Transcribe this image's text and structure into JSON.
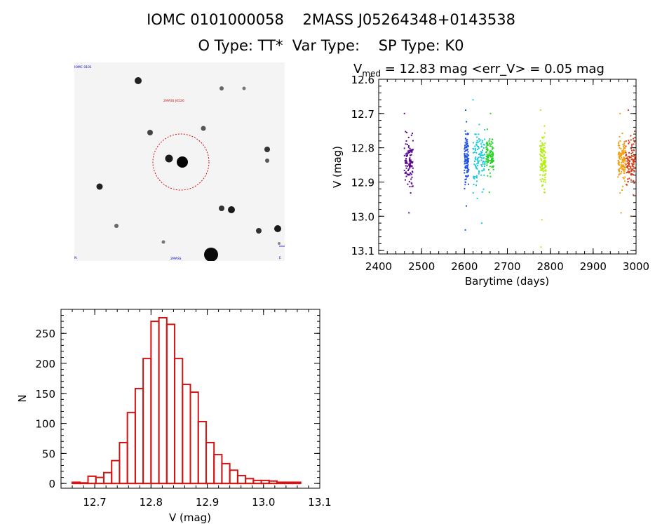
{
  "header": {
    "line1": "IOMC 0101000058    2MASS J05264348+0143538",
    "line2": "O Type: TT*  Var Type:    SP Type: K0"
  },
  "lightcurve_title": {
    "prefix": "V",
    "subscript": "med",
    "rest": " = 12.83 mag <err_V> = 0.05 mag"
  },
  "image_stamp": {
    "label_top_left": "IOMC 0101",
    "label_red": "2MASS J0526",
    "label_bottom_left": "N",
    "label_bottom_center": "2MASS",
    "label_bottom_right": "E"
  },
  "chart_data": [
    {
      "type": "scatter",
      "xlabel": "Barytime (days)",
      "ylabel": "V (mag)",
      "xlim": [
        2400,
        3000
      ],
      "ylim": [
        13.11,
        12.6
      ],
      "y_inverted": true,
      "xticks": [
        "2400",
        "2500",
        "2600",
        "2700",
        "2800",
        "2900",
        "3000"
      ],
      "yticks": [
        "12.6",
        "12.7",
        "12.8",
        "12.9",
        "13.0",
        "13.1"
      ],
      "series": [
        {
          "color": "#5a0a8c",
          "x": [
            2460,
            2480
          ],
          "y_median": 12.84,
          "y_range": [
            12.7,
            12.99
          ]
        },
        {
          "color": "#1e50e6",
          "x": [
            2600,
            2610
          ],
          "y_median": 12.83,
          "y_range": [
            12.69,
            13.04
          ]
        },
        {
          "color": "#19c8dc",
          "x": [
            2620,
            2648
          ],
          "y_median": 12.83,
          "y_range": [
            12.66,
            13.02
          ]
        },
        {
          "color": "#28d228",
          "x": [
            2650,
            2668
          ],
          "y_median": 12.82,
          "y_range": [
            12.7,
            12.93
          ]
        },
        {
          "color": "#b4ee10",
          "x": [
            2776,
            2790
          ],
          "y_median": 12.84,
          "y_range": [
            12.69,
            13.09
          ]
        },
        {
          "color": "#f0a010",
          "x": [
            2958,
            2975
          ],
          "y_median": 12.84,
          "y_range": [
            12.7,
            12.99
          ]
        },
        {
          "color": "#d23c14",
          "x": [
            2976,
            2998
          ],
          "y_median": 12.84,
          "y_range": [
            12.69,
            13.0
          ]
        }
      ]
    },
    {
      "type": "bar",
      "xlabel": "V (mag)",
      "ylabel": "N",
      "xlim": [
        12.64,
        13.1
      ],
      "ylim": [
        -8,
        290
      ],
      "xticks": [
        "12.7",
        "12.8",
        "12.9",
        "13.0",
        "13.1"
      ],
      "yticks": [
        "0",
        "50",
        "100",
        "150",
        "200",
        "250"
      ],
      "bin_start": 12.66,
      "bin_width": 0.014,
      "values": [
        2,
        1,
        12,
        10,
        18,
        38,
        68,
        118,
        158,
        208,
        270,
        276,
        265,
        208,
        165,
        152,
        103,
        68,
        48,
        33,
        22,
        13,
        8,
        5,
        5,
        4,
        2,
        2,
        2
      ]
    }
  ]
}
